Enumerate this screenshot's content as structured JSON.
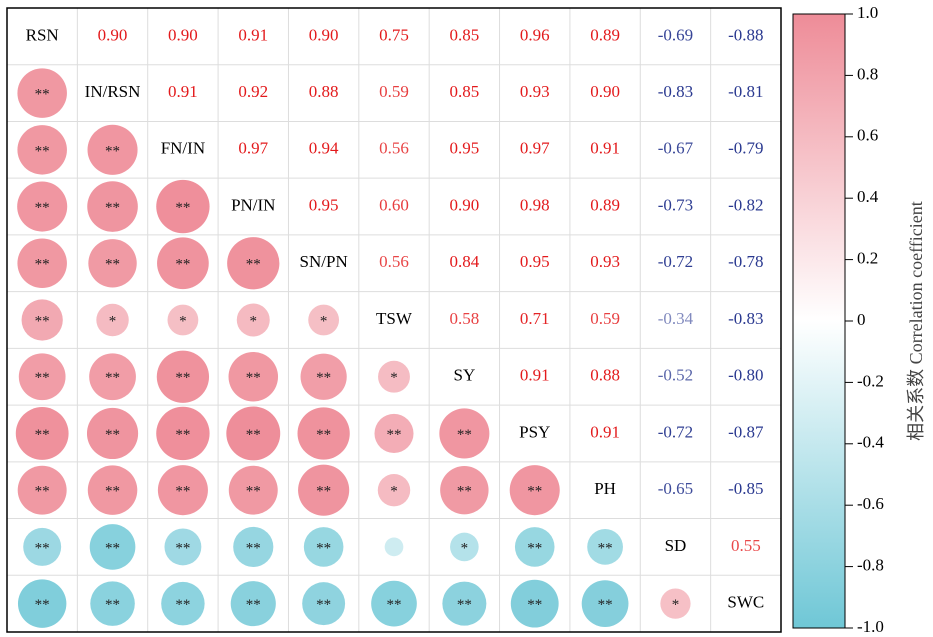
{
  "chart_data": {
    "type": "correlogram",
    "variables": [
      "RSN",
      "IN/RSN",
      "FN/IN",
      "PN/IN",
      "SN/PN",
      "TSW",
      "SY",
      "PSY",
      "PH",
      "SD",
      "SWC"
    ],
    "values": [
      [
        0.9,
        0.9,
        0.91,
        0.9,
        0.75,
        0.85,
        0.96,
        0.89,
        -0.69,
        -0.88
      ],
      [
        0.91,
        0.92,
        0.88,
        0.59,
        0.85,
        0.93,
        0.9,
        -0.83,
        -0.81
      ],
      [
        0.97,
        0.94,
        0.56,
        0.95,
        0.97,
        0.91,
        -0.67,
        -0.79
      ],
      [
        0.95,
        0.6,
        0.9,
        0.98,
        0.89,
        -0.73,
        -0.82
      ],
      [
        0.56,
        0.84,
        0.95,
        0.93,
        -0.72,
        -0.78
      ],
      [
        0.58,
        0.71,
        0.59,
        -0.34,
        -0.83
      ],
      [
        0.91,
        0.88,
        -0.52,
        -0.8
      ],
      [
        0.91,
        -0.72,
        -0.87
      ],
      [
        -0.65,
        -0.85
      ],
      [
        0.55
      ]
    ],
    "value_labels": [
      [
        "0.90",
        "0.90",
        "0.91",
        "0.90",
        "0.75",
        "0.85",
        "0.96",
        "0.89",
        "-0.69",
        "-0.88"
      ],
      [
        "0.91",
        "0.92",
        "0.88",
        "0.59",
        "0.85",
        "0.93",
        "0.90",
        "-0.83",
        "-0.81"
      ],
      [
        "0.97",
        "0.94",
        "0.56",
        "0.95",
        "0.97",
        "0.91",
        "-0.67",
        "-0.79"
      ],
      [
        "0.95",
        "0.60",
        "0.90",
        "0.98",
        "0.89",
        "-0.73",
        "-0.82"
      ],
      [
        "0.56",
        "0.84",
        "0.95",
        "0.93",
        "-0.72",
        "-0.78"
      ],
      [
        "0.58",
        "0.71",
        "0.59",
        "-0.34",
        "-0.83"
      ],
      [
        "0.91",
        "0.88",
        "-0.52",
        "-0.80"
      ],
      [
        "0.91",
        "-0.72",
        "-0.87"
      ],
      [
        "-0.65",
        "-0.85"
      ],
      [
        "0.55"
      ]
    ],
    "significance": [
      [
        "**"
      ],
      [
        "**",
        "**"
      ],
      [
        "**",
        "**",
        "**"
      ],
      [
        "**",
        "**",
        "**",
        "**"
      ],
      [
        "**",
        "*",
        "*",
        "*",
        "*"
      ],
      [
        "**",
        "**",
        "**",
        "**",
        "**",
        "*"
      ],
      [
        "**",
        "**",
        "**",
        "**",
        "**",
        "**",
        "**"
      ],
      [
        "**",
        "**",
        "**",
        "**",
        "**",
        "*",
        "**",
        "**"
      ],
      [
        "**",
        "**",
        "**",
        "**",
        "**",
        null,
        "*",
        "**",
        "**"
      ],
      [
        "**",
        "**",
        "**",
        "**",
        "**",
        "**",
        "**",
        "**",
        "**",
        "*"
      ]
    ],
    "colorbar_label": "相关系数 Correlation coefficient",
    "clim": [
      -1,
      1
    ],
    "cticks": [
      {
        "value": 1,
        "label": "1.0"
      },
      0.8,
      0.6,
      0.4,
      0.2,
      0,
      -0.2,
      -0.4,
      -0.6,
      -0.8,
      {
        "value": -1,
        "label": "-1.0"
      }
    ],
    "colors": [
      "#6fc7d6",
      "#ffffff",
      "#ee8c98"
    ],
    "text_colors": [
      "#2a3990",
      "#e31a1c"
    ]
  }
}
